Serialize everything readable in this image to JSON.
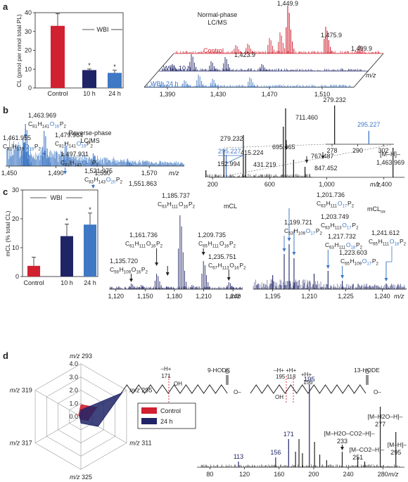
{
  "panels": {
    "a": "a",
    "b": "b",
    "c": "c",
    "d": "d"
  },
  "colors": {
    "red": "#d1202f",
    "navy": "#1f2466",
    "blue": "#3f78c4",
    "black": "#222222"
  },
  "chart_data": [
    {
      "id": "a-bar",
      "type": "bar",
      "categories": [
        "Control",
        "10 h",
        "24 h"
      ],
      "values": [
        33,
        9.5,
        8
      ],
      "errors": [
        6.5,
        0.6,
        1.4
      ],
      "colors": [
        "#d1202f",
        "#1f2466",
        "#3f78c4"
      ],
      "significance": [
        "",
        "*",
        "*"
      ],
      "ylabel": "CL (pmol per nmol total PL)",
      "ylim": [
        0,
        40
      ],
      "yticks": [
        "0",
        "10",
        "20",
        "30",
        "40"
      ],
      "legend": "WBI"
    },
    {
      "id": "a-spectra",
      "type": "line",
      "title": "Normal-phase LC/MS",
      "series": [
        {
          "name": "Control",
          "color": "#d1202f"
        },
        {
          "name": "WBI, 10 h",
          "color": "#1f2466"
        },
        {
          "name": "WBI, 24 h",
          "color": "#3f78c4"
        }
      ],
      "peak_labels": [
        "1,449.9",
        "1,475.9",
        "1,423.9",
        "1,499.9"
      ],
      "xticks": [
        "1,390",
        "1,430",
        "1,470",
        "1,510"
      ],
      "xlabel": "m/z"
    },
    {
      "id": "b-left",
      "type": "line",
      "title": "Reverse-phase LC/MS",
      "xlim": [
        1450,
        1600
      ],
      "xticks": [
        "1,450",
        "1,490",
        "1,530",
        "1,570"
      ],
      "xlabel": "m/z",
      "annotations": [
        {
          "mz": "1,463.969",
          "formula": "C81H141O16P2"
        },
        {
          "mz": "1,461.955",
          "formula": "C81H139O18P2"
        },
        {
          "mz": "1,479.964",
          "formula": "C81H141O19P2"
        },
        {
          "mz": "1,497.931",
          "formula": "C81H143O20P2"
        },
        {
          "mz": "1,521.975",
          "formula": "C83H143O20P2"
        },
        {
          "mz": "1,551.863",
          "formula": ""
        }
      ]
    },
    {
      "id": "b-right",
      "type": "line",
      "xlim": [
        100,
        1500
      ],
      "xticks": [
        "200",
        "600",
        "1,000",
        "1,400"
      ],
      "xlabel": "m/z",
      "peak_labels": [
        "279.232",
        "415.224",
        "431.219",
        "695.465",
        "711.460",
        "767.487",
        "847.452",
        "152.994",
        "295.227"
      ],
      "precursor": "[M–H]–",
      "precursor_mz": "1,463.969",
      "inset": {
        "peak_labels": [
          "279.232",
          "295.227"
        ],
        "xticks": [
          "278",
          "290",
          "302"
        ]
      }
    },
    {
      "id": "c-bar",
      "type": "bar",
      "categories": [
        "Control",
        "10 h",
        "24 h"
      ],
      "values": [
        3.7,
        14,
        18
      ],
      "errors": [
        3,
        4.2,
        4
      ],
      "colors": [
        "#d1202f",
        "#1f2466",
        "#3f78c4"
      ],
      "significance": [
        "",
        "*",
        "*"
      ],
      "ylabel": "mCL (% total CL)",
      "ylim": [
        0,
        30
      ],
      "yticks": [
        "0",
        "10",
        "20",
        "30"
      ],
      "legend": "WBI"
    },
    {
      "id": "c-mcl",
      "type": "line",
      "title": "mCL",
      "xticks": [
        "1,120",
        "1,150",
        "1,180",
        "1,210",
        "1,240"
      ],
      "xlabel": "m/z",
      "annotations": [
        {
          "mz": "1,185.737",
          "formula": "C63H111O16P2"
        },
        {
          "mz": "1,161.736",
          "formula": "C61H111O16P2"
        },
        {
          "mz": "1,209.735",
          "formula": "C65H111O16P2"
        },
        {
          "mz": "1,135.720",
          "formula": "C59H109O16P2"
        },
        {
          "mz": "1,235.751",
          "formula": "C67H113O16P2"
        }
      ]
    },
    {
      "id": "c-mclox",
      "type": "line",
      "title": "mCLox",
      "xticks": [
        "1,195",
        "1,210",
        "1,225",
        "1,240"
      ],
      "xlabel": "m/z",
      "annotations": [
        {
          "mz": "1,201.736",
          "formula": "C63H111O17P2"
        },
        {
          "mz": "1,203.749",
          "formula": "C63H113O17P2"
        },
        {
          "mz": "1,199.721",
          "formula": "C63H109O17P2"
        },
        {
          "mz": "1,217.732",
          "formula": "C63H111O18P2"
        },
        {
          "mz": "1,223.603",
          "formula": "C65H109O17P2"
        },
        {
          "mz": "1,241.612",
          "formula": "C65H111O18P2"
        }
      ]
    },
    {
      "id": "d-radar",
      "type": "radar",
      "axes": [
        "m/z 293",
        "m/z 295",
        "m/z 311",
        "m/z 325",
        "m/z 317",
        "m/z 319"
      ],
      "rlim": [
        0,
        4
      ],
      "rticks": [
        "0.0",
        "1.0",
        "2.0",
        "3.0",
        "4.0"
      ],
      "series": [
        {
          "name": "Control",
          "color": "#d1202f",
          "values": [
            0.9,
            1.4,
            0.6,
            0.2,
            0.1,
            0.2
          ]
        },
        {
          "name": "24 h",
          "color": "#1f2466",
          "values": [
            0.5,
            3.6,
            1.5,
            0.5,
            0.1,
            0.1
          ]
        }
      ]
    },
    {
      "id": "d-ms2",
      "type": "line",
      "xticks": [
        "80",
        "120",
        "160",
        "200",
        "240",
        "280"
      ],
      "xlabel": "m/z",
      "structures": [
        "9-HODE",
        "13-HODE"
      ],
      "structure_text": {
        "minus_h": "–H+",
        "plus_h": "+H+",
        "oh": "OH",
        "o_minus": "O–",
        "o": "O",
        "n171": "171",
        "n195": "195",
        "n113": "113",
        "n156": "156"
      },
      "peak_labels": {
        "p195": "195",
        "p171": "171",
        "p156": "156",
        "p113": "113",
        "p233": "233",
        "p251": "251",
        "p277": "277",
        "p295": "295",
        "l233": "[M–H2O–CO2–H]–",
        "l251": "[M–CO2–H]–",
        "l277": "[M–H2O–H]–",
        "l295": "[M–H]–"
      }
    }
  ]
}
